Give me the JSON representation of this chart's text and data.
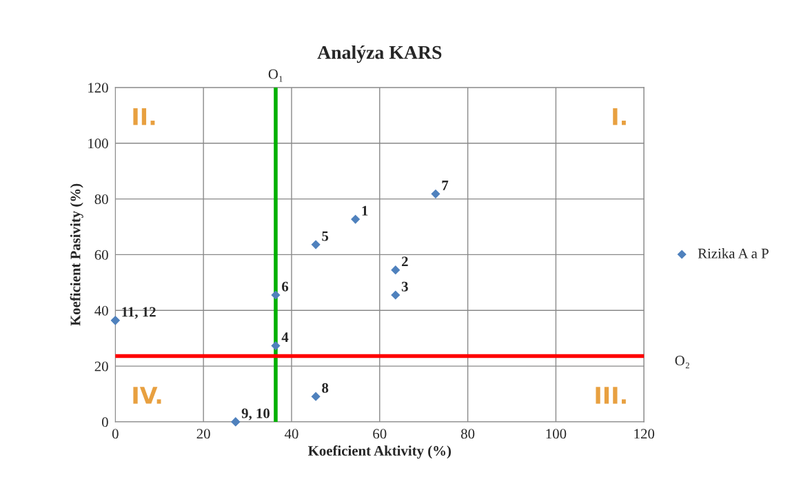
{
  "chart_data": {
    "type": "scatter",
    "title": "Analýza KARS",
    "xlabel": "Koeficient Aktivity (%)",
    "ylabel": "Koeficient Pasivity (%)",
    "series": [
      {
        "name": "Rizika A a P",
        "color": "#4f81bd",
        "x": [
          54.5,
          63.6,
          63.6,
          36.4,
          45.5,
          36.4,
          72.7,
          45.5,
          27.3,
          27.3,
          0,
          0
        ],
        "values": [
          72.7,
          54.5,
          45.5,
          27.3,
          63.6,
          45.5,
          81.8,
          9.1,
          0,
          0,
          36.4,
          36.4
        ]
      }
    ],
    "xlim": [
      0,
      120
    ],
    "ylim": [
      0,
      120
    ],
    "xticks": [
      0,
      20,
      40,
      60,
      80,
      100,
      120
    ],
    "yticks": [
      0,
      20,
      40,
      60,
      80,
      100,
      120
    ],
    "grid": true,
    "legend": "right",
    "marker": "diamond",
    "ref_lines": [
      {
        "axis": "x",
        "value": 36.4,
        "label": "O₁",
        "color": "#00b000"
      },
      {
        "axis": "y",
        "value": 23.6,
        "label": "O₂",
        "color": "#ff0000"
      }
    ],
    "annotations": [
      {
        "text": "1",
        "x": 54.5,
        "y": 72.7
      },
      {
        "text": "2",
        "x": 63.6,
        "y": 54.5
      },
      {
        "text": "3",
        "x": 63.6,
        "y": 45.5
      },
      {
        "text": "4",
        "x": 36.4,
        "y": 27.3
      },
      {
        "text": "5",
        "x": 45.5,
        "y": 63.6
      },
      {
        "text": "6",
        "x": 36.4,
        "y": 45.5
      },
      {
        "text": "7",
        "x": 72.7,
        "y": 81.8
      },
      {
        "text": "8",
        "x": 45.5,
        "y": 9.1
      },
      {
        "text": "9, 10",
        "x": 27.3,
        "y": 0
      },
      {
        "text": "11, 12",
        "x": 0,
        "y": 36.4
      },
      "II.",
      "I.",
      "IV.",
      "III."
    ]
  }
}
